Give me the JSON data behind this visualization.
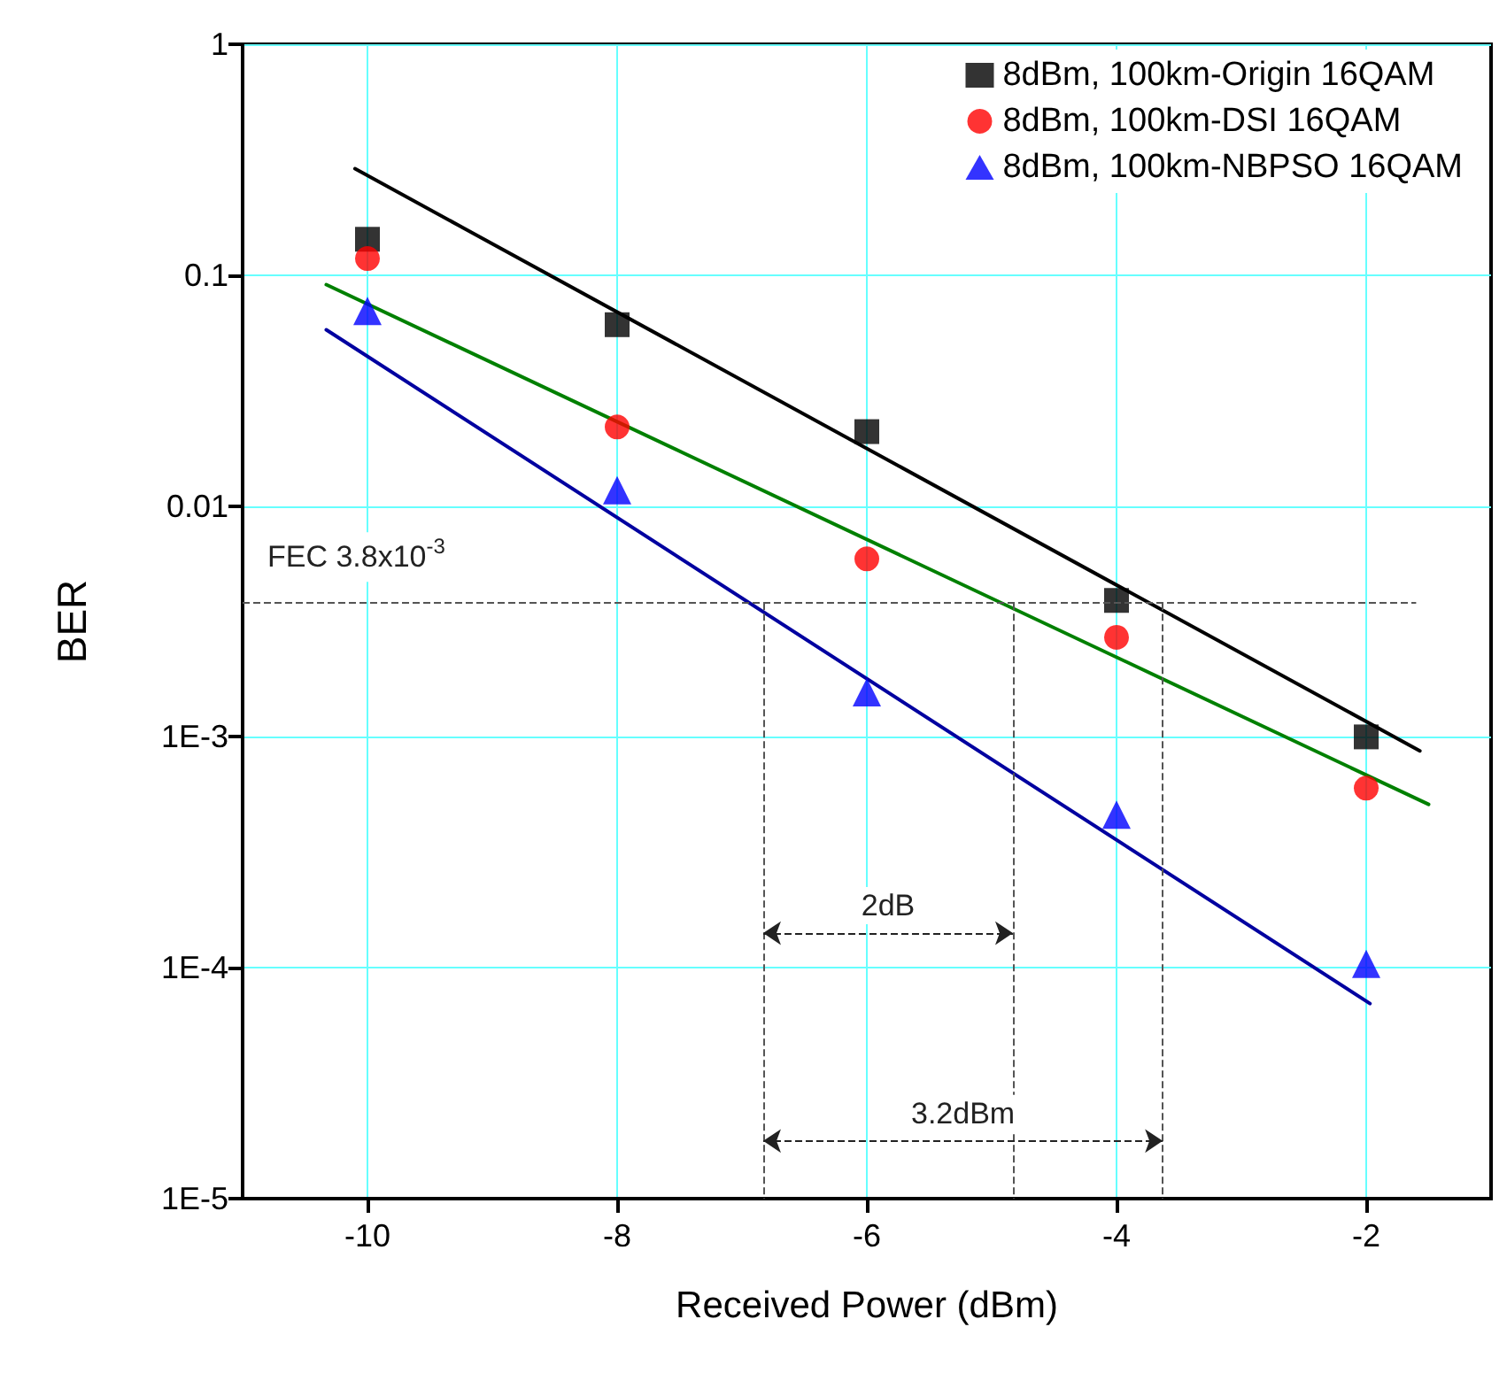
{
  "chart_data": {
    "type": "scatter",
    "xlabel": "Received Power (dBm)",
    "ylabel": "BER",
    "log": "y",
    "grid": true,
    "legend": "top right",
    "xlim": [
      -11,
      -1
    ],
    "xticks": [
      -10,
      -8,
      -6,
      -4,
      -2
    ],
    "ylim": [
      1e-05,
      1
    ],
    "yticks": [
      {
        "value": 1e-05,
        "label": "1E-5"
      },
      {
        "value": 0.0001,
        "label": "1E-4"
      },
      {
        "value": 0.001,
        "label": "1E-3"
      },
      0.01,
      0.1,
      1
    ],
    "x": [
      -10,
      -8,
      -6,
      -4,
      -2
    ],
    "series": [
      {
        "name": "8dBm, 100km-Origin 16QAM",
        "color": "#000000",
        "marker": "square",
        "values": [
          0.143,
          0.061,
          0.021,
          0.0039,
          0.001
        ]
      },
      {
        "name": "8dBm, 100km-DSI 16QAM",
        "color": "#ff0000",
        "marker": "circle",
        "values": [
          0.118,
          0.022,
          0.0059,
          0.0027,
          0.0006
        ]
      },
      {
        "name": "8dBm, 100km-NBPSO 16QAM",
        "color": "#0000ff",
        "marker": "triangle",
        "values": [
          0.07,
          0.0117,
          0.00156,
          0.00046,
          0.000104
        ]
      },
      {
        "type": "line",
        "color": "#000000",
        "x": [
          -10.1,
          -1.57
        ],
        "values": [
          0.289,
          0.00087
        ]
      },
      {
        "type": "line",
        "color": "#008000",
        "x": [
          -10.33,
          -1.5
        ],
        "values": [
          0.091,
          0.00051
        ]
      },
      {
        "type": "line",
        "color": "#0000a0",
        "x": [
          -10.33,
          -1.97
        ],
        "values": [
          0.058,
          7e-05
        ]
      }
    ],
    "ref_lines": [
      {
        "axis": "y",
        "value": 0.0038,
        "label": "FEC 3.8x10$^{-3}$",
        "line_style": "dashed"
      },
      {
        "axis": "x",
        "value": -6.83,
        "line_style": "dashed"
      },
      {
        "axis": "x",
        "value": -4.83,
        "line_style": "dashed"
      },
      {
        "axis": "x",
        "value": -3.63,
        "line_style": "dashed"
      }
    ],
    "annotations": [
      "2dB",
      "3.2dBm"
    ]
  }
}
